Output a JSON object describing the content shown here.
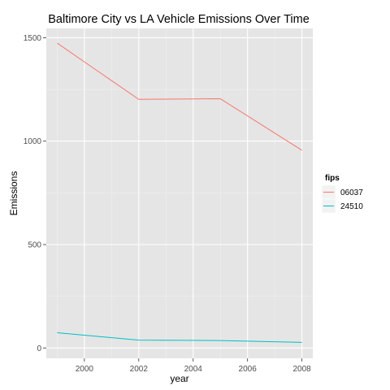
{
  "chart_data": {
    "type": "line",
    "title": "Baltimore City  vs LA Vehicle Emissions Over Time",
    "xlabel": "year",
    "ylabel": "Emissions",
    "x": [
      1999,
      2002,
      2005,
      2008
    ],
    "xlim": [
      1998.6,
      2008.4
    ],
    "ylim": [
      -50,
      1545
    ],
    "x_ticks": [
      2000,
      2002,
      2004,
      2006,
      2008
    ],
    "y_ticks": [
      0,
      500,
      1000,
      1500
    ],
    "x_tick_labels": [
      "2000",
      "2002",
      "2004",
      "2006",
      "2008"
    ],
    "y_tick_labels": [
      "0",
      "500",
      "1000",
      "1500"
    ],
    "grid": true,
    "background": "#e5e5e5",
    "legend": {
      "title": "fips",
      "placement": "right"
    },
    "series": [
      {
        "name": "06037",
        "color": "#f8766d",
        "values": [
          1474,
          1202,
          1205,
          956
        ]
      },
      {
        "name": "24510",
        "color": "#00bfc4",
        "values": [
          74,
          38,
          36,
          27
        ]
      }
    ]
  }
}
